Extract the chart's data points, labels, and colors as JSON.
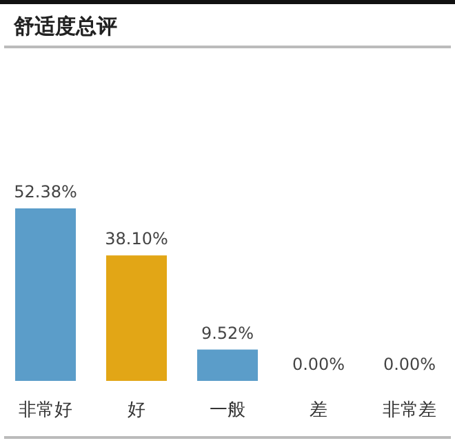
{
  "chart_data": {
    "type": "bar",
    "title": "舒适度总评",
    "categories": [
      "非常好",
      "好",
      "一般",
      "差",
      "非常差"
    ],
    "values": [
      52.38,
      38.1,
      9.52,
      0,
      0
    ],
    "colors": [
      "#5b9dc9",
      "#e2a616",
      "#5b9dc9",
      "#5b9dc9",
      "#5b9dc9"
    ],
    "value_labels": [
      "52.38%",
      "38.10%",
      "9.52%",
      "0.00%",
      "0.00%"
    ]
  }
}
